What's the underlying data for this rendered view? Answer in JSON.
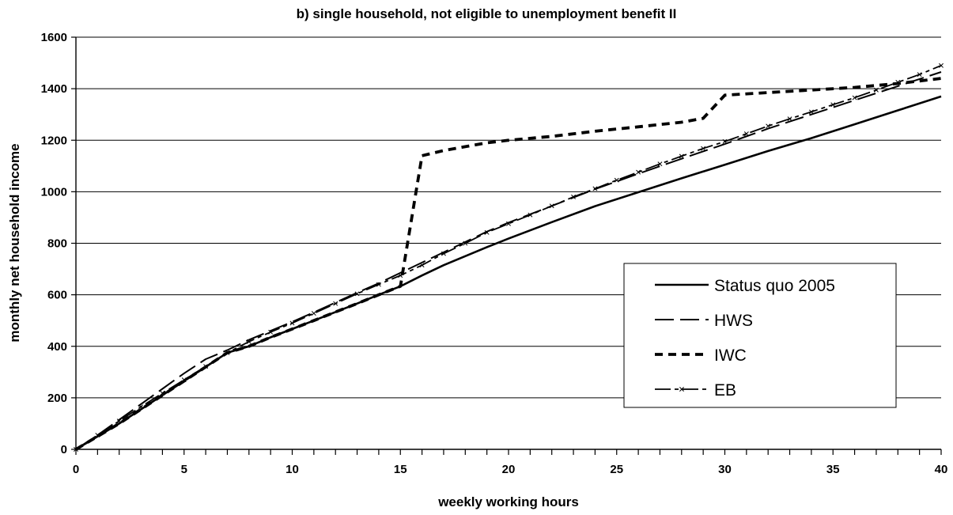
{
  "chart_data": {
    "type": "line",
    "title": "b)  single household, not eligible to unemployment benefit II",
    "xlabel": "weekly working hours",
    "ylabel": "monthly net household income",
    "xlim": [
      0,
      40
    ],
    "ylim": [
      0,
      1600
    ],
    "x_ticks": [
      "0",
      "5",
      "10",
      "15",
      "20",
      "25",
      "30",
      "35",
      "40"
    ],
    "y_ticks": [
      "0",
      "200",
      "400",
      "600",
      "800",
      "1000",
      "1200",
      "1400",
      "1600"
    ],
    "grid": "horizontal",
    "legend_position": "right",
    "series": [
      {
        "name": "Status quo 2005",
        "style": "solid",
        "color": "#000000",
        "points": [
          [
            0,
            0
          ],
          [
            1,
            50
          ],
          [
            2,
            100
          ],
          [
            3,
            155
          ],
          [
            4,
            210
          ],
          [
            5,
            265
          ],
          [
            6,
            320
          ],
          [
            7,
            375
          ],
          [
            8,
            400
          ],
          [
            9,
            435
          ],
          [
            10,
            467
          ],
          [
            11,
            500
          ],
          [
            12,
            533
          ],
          [
            13,
            566
          ],
          [
            14,
            600
          ],
          [
            15,
            633
          ],
          [
            16,
            675
          ],
          [
            17,
            715
          ],
          [
            18,
            750
          ],
          [
            19,
            785
          ],
          [
            20,
            818
          ],
          [
            22,
            882
          ],
          [
            24,
            944
          ],
          [
            26,
            998
          ],
          [
            28,
            1052
          ],
          [
            30,
            1105
          ],
          [
            32,
            1158
          ],
          [
            34,
            1208
          ],
          [
            36,
            1262
          ],
          [
            38,
            1316
          ],
          [
            40,
            1370
          ]
        ]
      },
      {
        "name": "HWS",
        "style": "longdash",
        "color": "#000000",
        "points": [
          [
            0,
            0
          ],
          [
            1,
            55
          ],
          [
            2,
            115
          ],
          [
            3,
            175
          ],
          [
            4,
            235
          ],
          [
            5,
            295
          ],
          [
            6,
            350
          ],
          [
            7,
            385
          ],
          [
            8,
            425
          ],
          [
            9,
            460
          ],
          [
            10,
            495
          ],
          [
            11,
            532
          ],
          [
            12,
            570
          ],
          [
            13,
            608
          ],
          [
            14,
            645
          ],
          [
            15,
            685
          ],
          [
            16,
            725
          ],
          [
            17,
            765
          ],
          [
            18,
            805
          ],
          [
            19,
            845
          ],
          [
            20,
            880
          ],
          [
            22,
            945
          ],
          [
            24,
            1010
          ],
          [
            26,
            1070
          ],
          [
            28,
            1128
          ],
          [
            30,
            1185
          ],
          [
            32,
            1245
          ],
          [
            34,
            1300
          ],
          [
            36,
            1355
          ],
          [
            38,
            1410
          ],
          [
            40,
            1465
          ]
        ]
      },
      {
        "name": "IWC",
        "style": "shortdash",
        "color": "#000000",
        "points": [
          [
            0,
            0
          ],
          [
            1,
            50
          ],
          [
            2,
            100
          ],
          [
            3,
            155
          ],
          [
            4,
            210
          ],
          [
            5,
            265
          ],
          [
            6,
            320
          ],
          [
            7,
            375
          ],
          [
            8,
            400
          ],
          [
            9,
            435
          ],
          [
            10,
            467
          ],
          [
            11,
            500
          ],
          [
            12,
            533
          ],
          [
            13,
            566
          ],
          [
            14,
            600
          ],
          [
            15,
            633
          ],
          [
            16,
            1140
          ],
          [
            17,
            1160
          ],
          [
            18,
            1175
          ],
          [
            19,
            1190
          ],
          [
            20,
            1200
          ],
          [
            22,
            1215
          ],
          [
            24,
            1235
          ],
          [
            26,
            1252
          ],
          [
            28,
            1270
          ],
          [
            29,
            1285
          ],
          [
            30,
            1375
          ],
          [
            32,
            1385
          ],
          [
            34,
            1395
          ],
          [
            36,
            1405
          ],
          [
            38,
            1420
          ],
          [
            40,
            1440
          ]
        ]
      },
      {
        "name": "EB",
        "style": "dashdot-x",
        "color": "#000000",
        "points": [
          [
            0,
            0
          ],
          [
            1,
            55
          ],
          [
            2,
            110
          ],
          [
            3,
            165
          ],
          [
            4,
            218
          ],
          [
            5,
            270
          ],
          [
            6,
            322
          ],
          [
            7,
            375
          ],
          [
            8,
            418
          ],
          [
            9,
            455
          ],
          [
            10,
            490
          ],
          [
            11,
            528
          ],
          [
            12,
            566
          ],
          [
            13,
            604
          ],
          [
            14,
            640
          ],
          [
            15,
            675
          ],
          [
            16,
            715
          ],
          [
            17,
            760
          ],
          [
            18,
            800
          ],
          [
            19,
            842
          ],
          [
            20,
            876
          ],
          [
            21,
            910
          ],
          [
            22,
            945
          ],
          [
            23,
            980
          ],
          [
            24,
            1012
          ],
          [
            25,
            1045
          ],
          [
            26,
            1076
          ],
          [
            27,
            1108
          ],
          [
            28,
            1138
          ],
          [
            29,
            1168
          ],
          [
            30,
            1195
          ],
          [
            31,
            1225
          ],
          [
            32,
            1255
          ],
          [
            33,
            1283
          ],
          [
            34,
            1310
          ],
          [
            35,
            1338
          ],
          [
            36,
            1365
          ],
          [
            37,
            1395
          ],
          [
            38,
            1425
          ],
          [
            39,
            1455
          ],
          [
            40,
            1490
          ]
        ]
      }
    ]
  }
}
